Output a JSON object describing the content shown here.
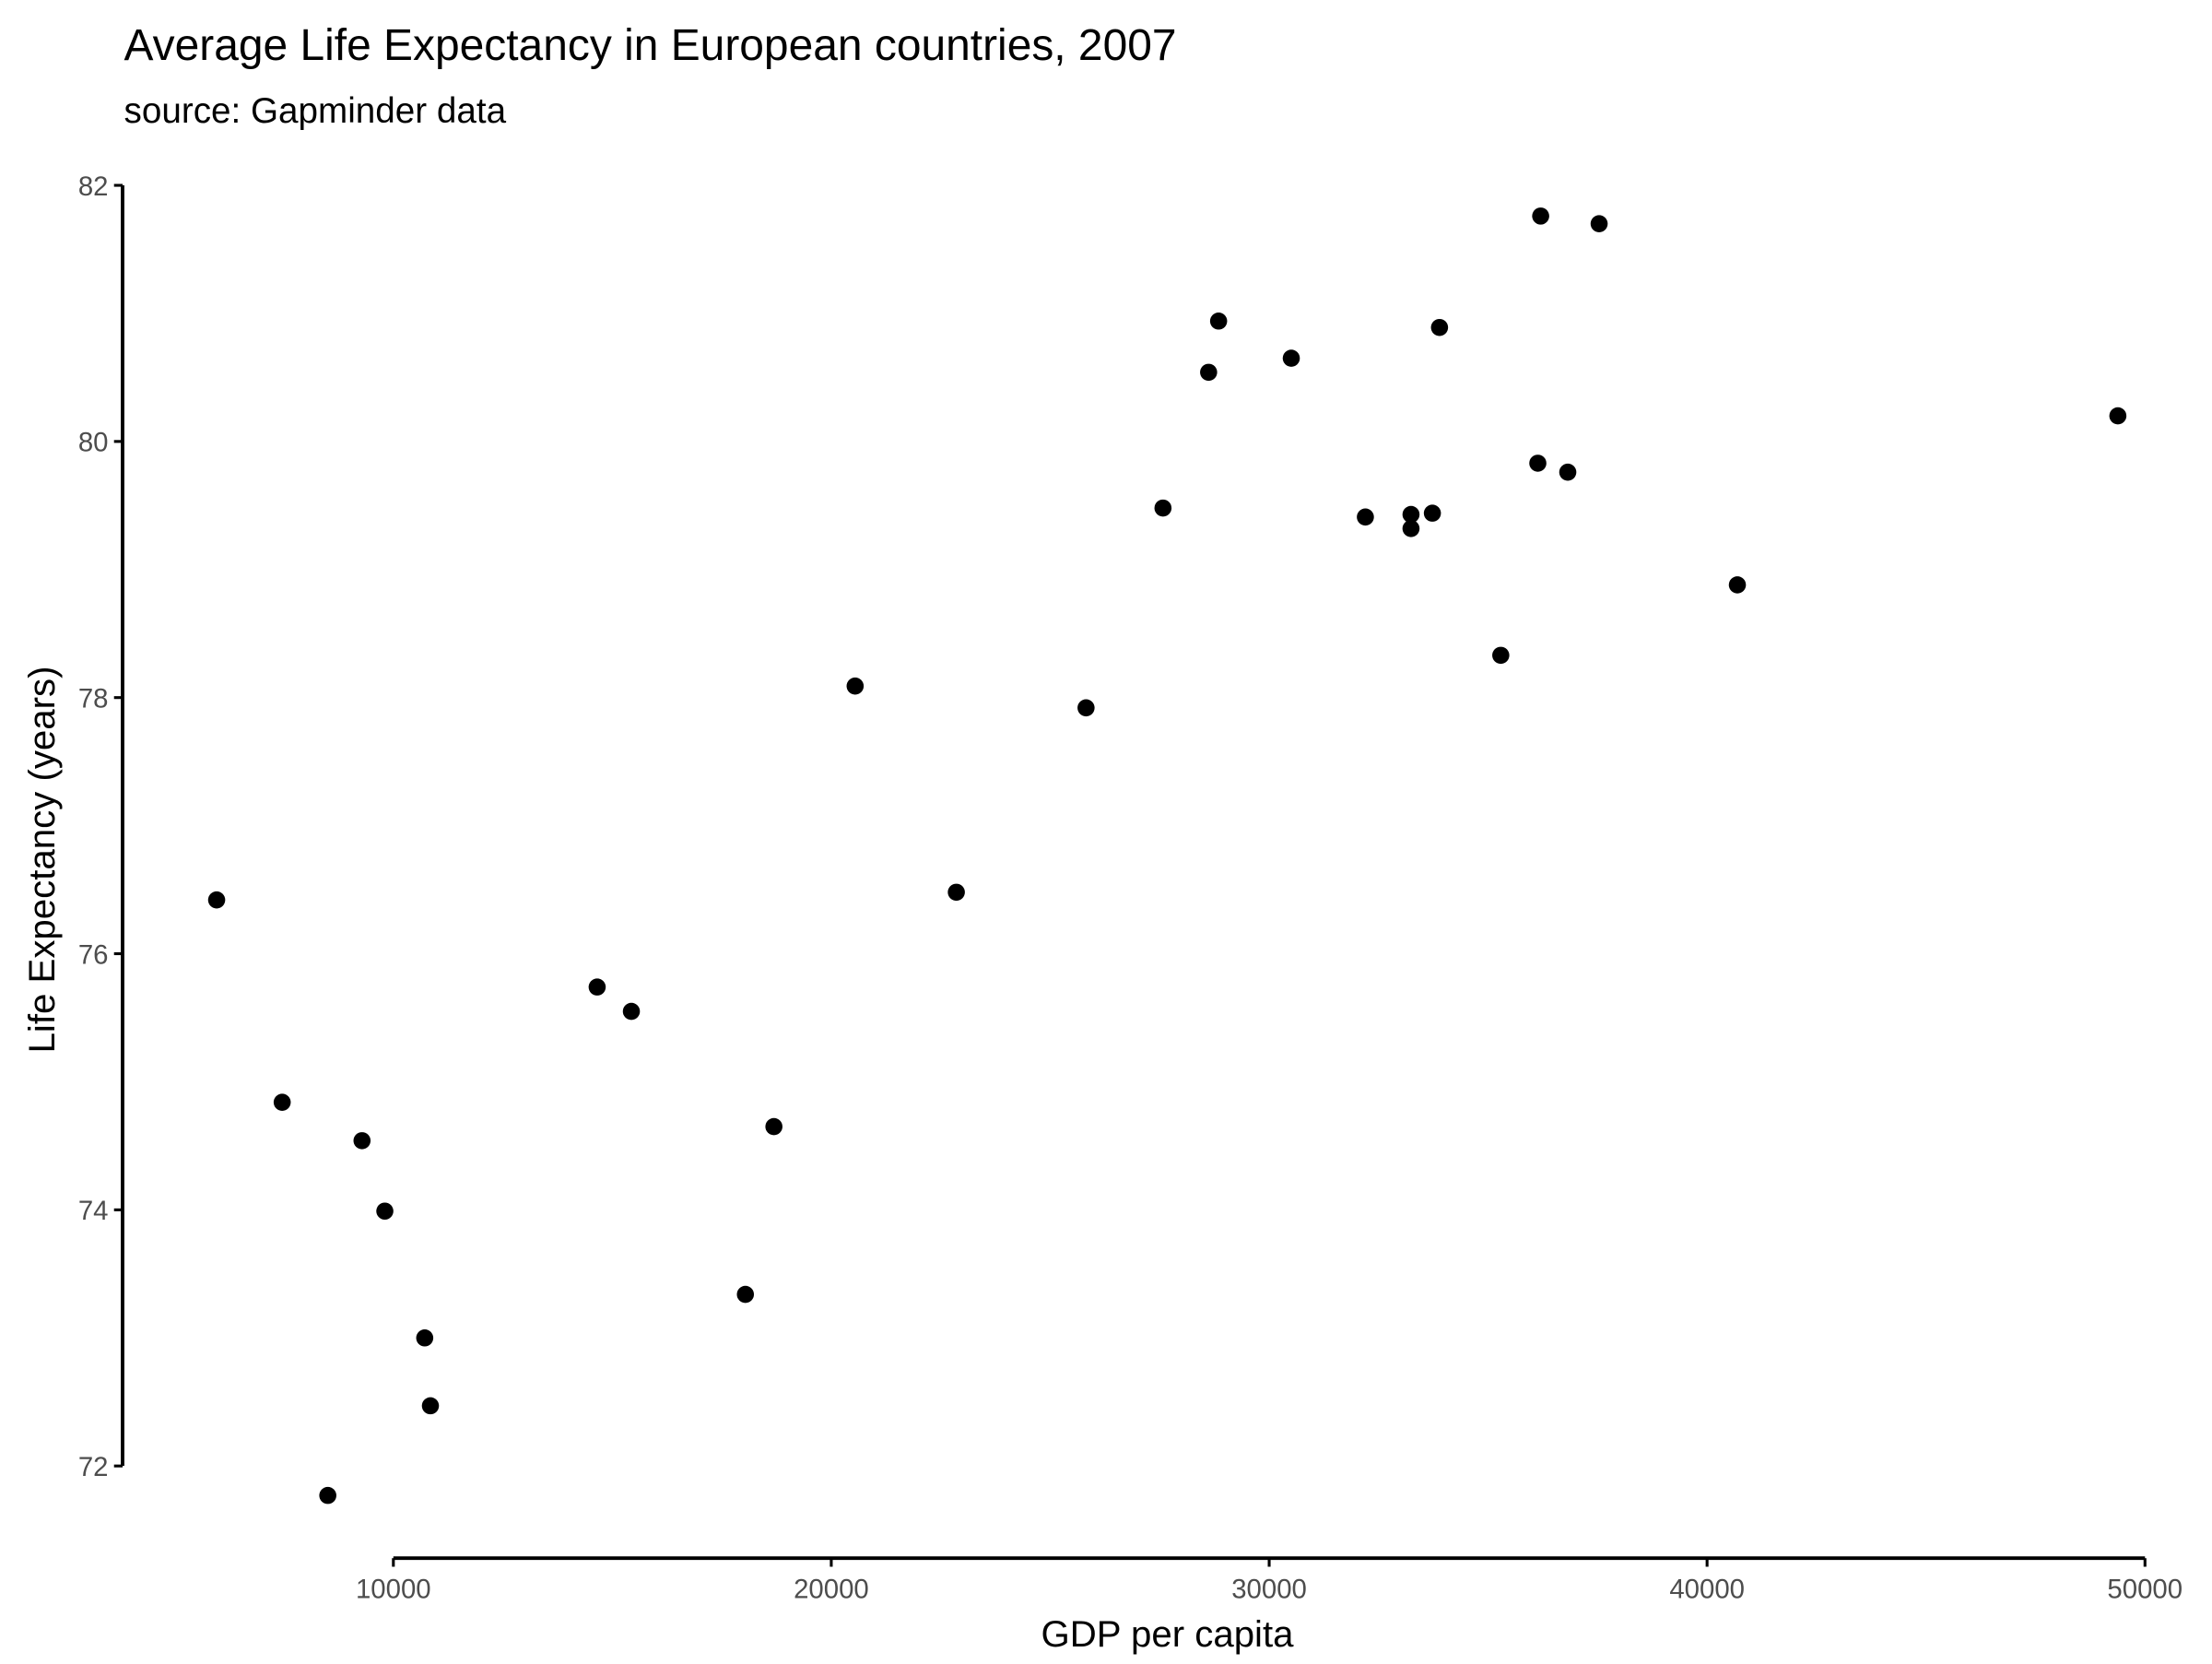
{
  "chart_data": {
    "type": "scatter",
    "title": "Average Life Expectancy in European countries, 2007",
    "subtitle": "source: Gapminder data",
    "xlabel": "GDP per capita",
    "ylabel": "Life Expectancy (years)",
    "xlim": [
      3816,
      51140
    ],
    "ylim": [
      71.28,
      82.0
    ],
    "xticks": [
      10000,
      20000,
      30000,
      40000,
      50000
    ],
    "yticks": [
      72,
      74,
      76,
      78,
      80,
      82
    ],
    "grid": false,
    "point_color": "#000000",
    "points": [
      {
        "x": 5964,
        "y": 76.42
      },
      {
        "x": 7461,
        "y": 74.84
      },
      {
        "x": 8503,
        "y": 71.77
      },
      {
        "x": 9284,
        "y": 74.54
      },
      {
        "x": 9805,
        "y": 73.99
      },
      {
        "x": 10716,
        "y": 73.0
      },
      {
        "x": 10846,
        "y": 72.47
      },
      {
        "x": 14654,
        "y": 75.74
      },
      {
        "x": 15435,
        "y": 75.55
      },
      {
        "x": 18039,
        "y": 73.34
      },
      {
        "x": 18690,
        "y": 74.65
      },
      {
        "x": 20545,
        "y": 78.09
      },
      {
        "x": 22856,
        "y": 76.48
      },
      {
        "x": 25818,
        "y": 77.92
      },
      {
        "x": 27575,
        "y": 79.48
      },
      {
        "x": 28617,
        "y": 80.54
      },
      {
        "x": 28845,
        "y": 80.94
      },
      {
        "x": 30505,
        "y": 80.65
      },
      {
        "x": 32197,
        "y": 79.41
      },
      {
        "x": 33239,
        "y": 79.43
      },
      {
        "x": 33239,
        "y": 79.32
      },
      {
        "x": 33727,
        "y": 79.44
      },
      {
        "x": 33890,
        "y": 80.89
      },
      {
        "x": 35289,
        "y": 78.33
      },
      {
        "x": 36135,
        "y": 79.83
      },
      {
        "x": 36200,
        "y": 81.76
      },
      {
        "x": 36819,
        "y": 79.76
      },
      {
        "x": 37535,
        "y": 81.7
      },
      {
        "x": 40692,
        "y": 78.88
      },
      {
        "x": 49381,
        "y": 80.2
      }
    ]
  }
}
